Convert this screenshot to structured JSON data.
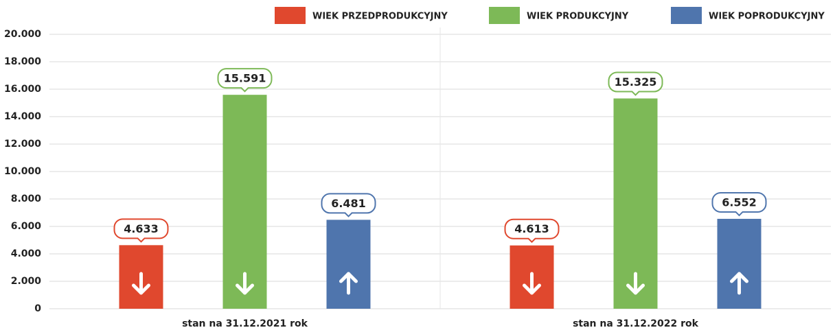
{
  "chart_data": {
    "type": "bar",
    "categories": [
      "stan na 31.12.2021 rok",
      "stan na 31.12.2022 rok"
    ],
    "series": [
      {
        "name": "WIEK PRZEDPRODUKCYJNY",
        "color": "#e0482e",
        "values": [
          4633,
          4613
        ],
        "value_labels": [
          "4.633",
          "4.613"
        ],
        "trend": "down"
      },
      {
        "name": "WIEK PRODUKCYJNY",
        "color": "#7db957",
        "values": [
          15591,
          15325
        ],
        "value_labels": [
          "15.591",
          "15.325"
        ],
        "trend": "down"
      },
      {
        "name": "WIEK POPRODUKCYJNY",
        "color": "#4f75ad",
        "values": [
          6481,
          6552
        ],
        "value_labels": [
          "6.481",
          "6.552"
        ],
        "trend": "up"
      }
    ],
    "ylim": [
      0,
      20000
    ],
    "yticks": [
      0,
      {
        "value": 2000,
        "label": "2.000"
      },
      {
        "value": 4000,
        "label": "4.000"
      },
      {
        "value": 6000,
        "label": "6.000"
      },
      {
        "value": 8000,
        "label": "8.000"
      },
      {
        "value": 10000,
        "label": "10.000"
      },
      {
        "value": 12000,
        "label": "12.000"
      },
      {
        "value": 14000,
        "label": "14.000"
      },
      {
        "value": 16000,
        "label": "16.000"
      },
      {
        "value": 18000,
        "label": "18.000"
      },
      {
        "value": 20000,
        "label": "20.000"
      }
    ],
    "grid": true,
    "legend": "top"
  }
}
